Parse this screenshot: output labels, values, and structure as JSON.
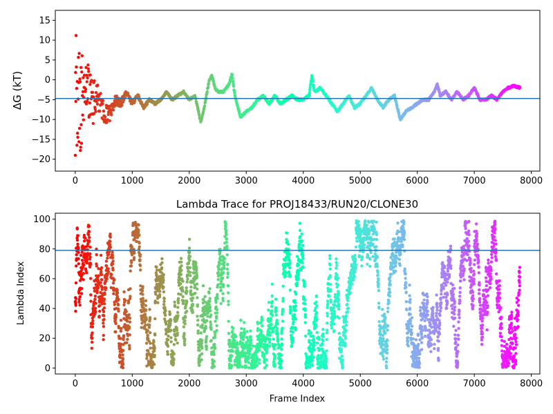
{
  "chart_data": [
    {
      "type": "scatter",
      "title": "",
      "xlabel": "",
      "ylabel": "ΔG (kT)",
      "xlim": [
        -350,
        8150
      ],
      "ylim": [
        -23,
        17.5
      ],
      "xticks": [
        0,
        1000,
        2000,
        3000,
        4000,
        5000,
        6000,
        7000,
        8000
      ],
      "xtick_labels": [
        "0",
        "1000",
        "2000",
        "3000",
        "4000",
        "5000",
        "6000",
        "7000",
        "8000"
      ],
      "yticks": [
        -20,
        -15,
        -10,
        -5,
        0,
        5,
        10,
        15
      ],
      "ytick_labels": [
        "−20",
        "−15",
        "−10",
        "−5",
        "0",
        "5",
        "10",
        "15"
      ],
      "hline": -4.7,
      "hline_color": "#1f77b4",
      "colormap": "rainbow_r",
      "n_frames": 7800,
      "grid": false,
      "trace_keypoints": [
        [
          0,
          -3
        ],
        [
          100,
          -6
        ],
        [
          200,
          -2
        ],
        [
          300,
          -6
        ],
        [
          400,
          -4
        ],
        [
          500,
          -8
        ],
        [
          600,
          -9
        ],
        [
          700,
          -5
        ],
        [
          800,
          -6
        ],
        [
          900,
          -3
        ],
        [
          1000,
          -6
        ],
        [
          1100,
          -4
        ],
        [
          1200,
          -7
        ],
        [
          1300,
          -5
        ],
        [
          1400,
          -6
        ],
        [
          1500,
          -5
        ],
        [
          1600,
          -3
        ],
        [
          1700,
          -5
        ],
        [
          1800,
          -4
        ],
        [
          1900,
          -3
        ],
        [
          2000,
          -5
        ],
        [
          2100,
          -4
        ],
        [
          2200,
          -10.5
        ],
        [
          2250,
          -8
        ],
        [
          2300,
          -4
        ],
        [
          2350,
          0
        ],
        [
          2400,
          1
        ],
        [
          2450,
          -2
        ],
        [
          2500,
          -3
        ],
        [
          2600,
          -3
        ],
        [
          2700,
          -1
        ],
        [
          2750,
          1.5
        ],
        [
          2800,
          -4
        ],
        [
          2900,
          -9.5
        ],
        [
          3000,
          -8
        ],
        [
          3100,
          -7
        ],
        [
          3200,
          -5
        ],
        [
          3300,
          -4
        ],
        [
          3400,
          -6
        ],
        [
          3500,
          -4
        ],
        [
          3600,
          -6
        ],
        [
          3700,
          -5
        ],
        [
          3800,
          -4
        ],
        [
          3900,
          -5
        ],
        [
          4000,
          -5
        ],
        [
          4100,
          -4
        ],
        [
          4150,
          1
        ],
        [
          4200,
          -3
        ],
        [
          4300,
          -2
        ],
        [
          4400,
          -4
        ],
        [
          4500,
          -6
        ],
        [
          4600,
          -8
        ],
        [
          4700,
          -6
        ],
        [
          4800,
          -4
        ],
        [
          4900,
          -7
        ],
        [
          5000,
          -6
        ],
        [
          5100,
          -4
        ],
        [
          5200,
          -2
        ],
        [
          5300,
          -5
        ],
        [
          5400,
          -7
        ],
        [
          5500,
          -5
        ],
        [
          5600,
          -4
        ],
        [
          5700,
          -10
        ],
        [
          5800,
          -8
        ],
        [
          5900,
          -7
        ],
        [
          6000,
          -6
        ],
        [
          6100,
          -5
        ],
        [
          6200,
          -5
        ],
        [
          6300,
          -3
        ],
        [
          6350,
          -1
        ],
        [
          6400,
          -4
        ],
        [
          6500,
          -3
        ],
        [
          6600,
          -5
        ],
        [
          6700,
          -3
        ],
        [
          6800,
          -5
        ],
        [
          6900,
          -4
        ],
        [
          7000,
          -2
        ],
        [
          7100,
          -5
        ],
        [
          7200,
          -5
        ],
        [
          7300,
          -4
        ],
        [
          7400,
          -5
        ],
        [
          7500,
          -3
        ],
        [
          7600,
          -2
        ],
        [
          7700,
          -1.5
        ],
        [
          7800,
          -2
        ]
      ]
    },
    {
      "type": "scatter",
      "title": "Lambda Trace for PROJ18433/RUN20/CLONE30",
      "xlabel": "Frame Index",
      "ylabel": "Lambda Index",
      "xlim": [
        -350,
        8150
      ],
      "ylim": [
        -4,
        104
      ],
      "xticks": [
        0,
        1000,
        2000,
        3000,
        4000,
        5000,
        6000,
        7000,
        8000
      ],
      "xtick_labels": [
        "0",
        "1000",
        "2000",
        "3000",
        "4000",
        "5000",
        "6000",
        "7000",
        "8000"
      ],
      "yticks": [
        0,
        20,
        40,
        60,
        80,
        100
      ],
      "ytick_labels": [
        "0",
        "20",
        "40",
        "60",
        "80",
        "100"
      ],
      "hline": 79,
      "hline_color": "#1f77b4",
      "colormap": "rainbow_r",
      "n_frames": 7800,
      "lambda_range": [
        0,
        99
      ],
      "grid": false
    }
  ]
}
